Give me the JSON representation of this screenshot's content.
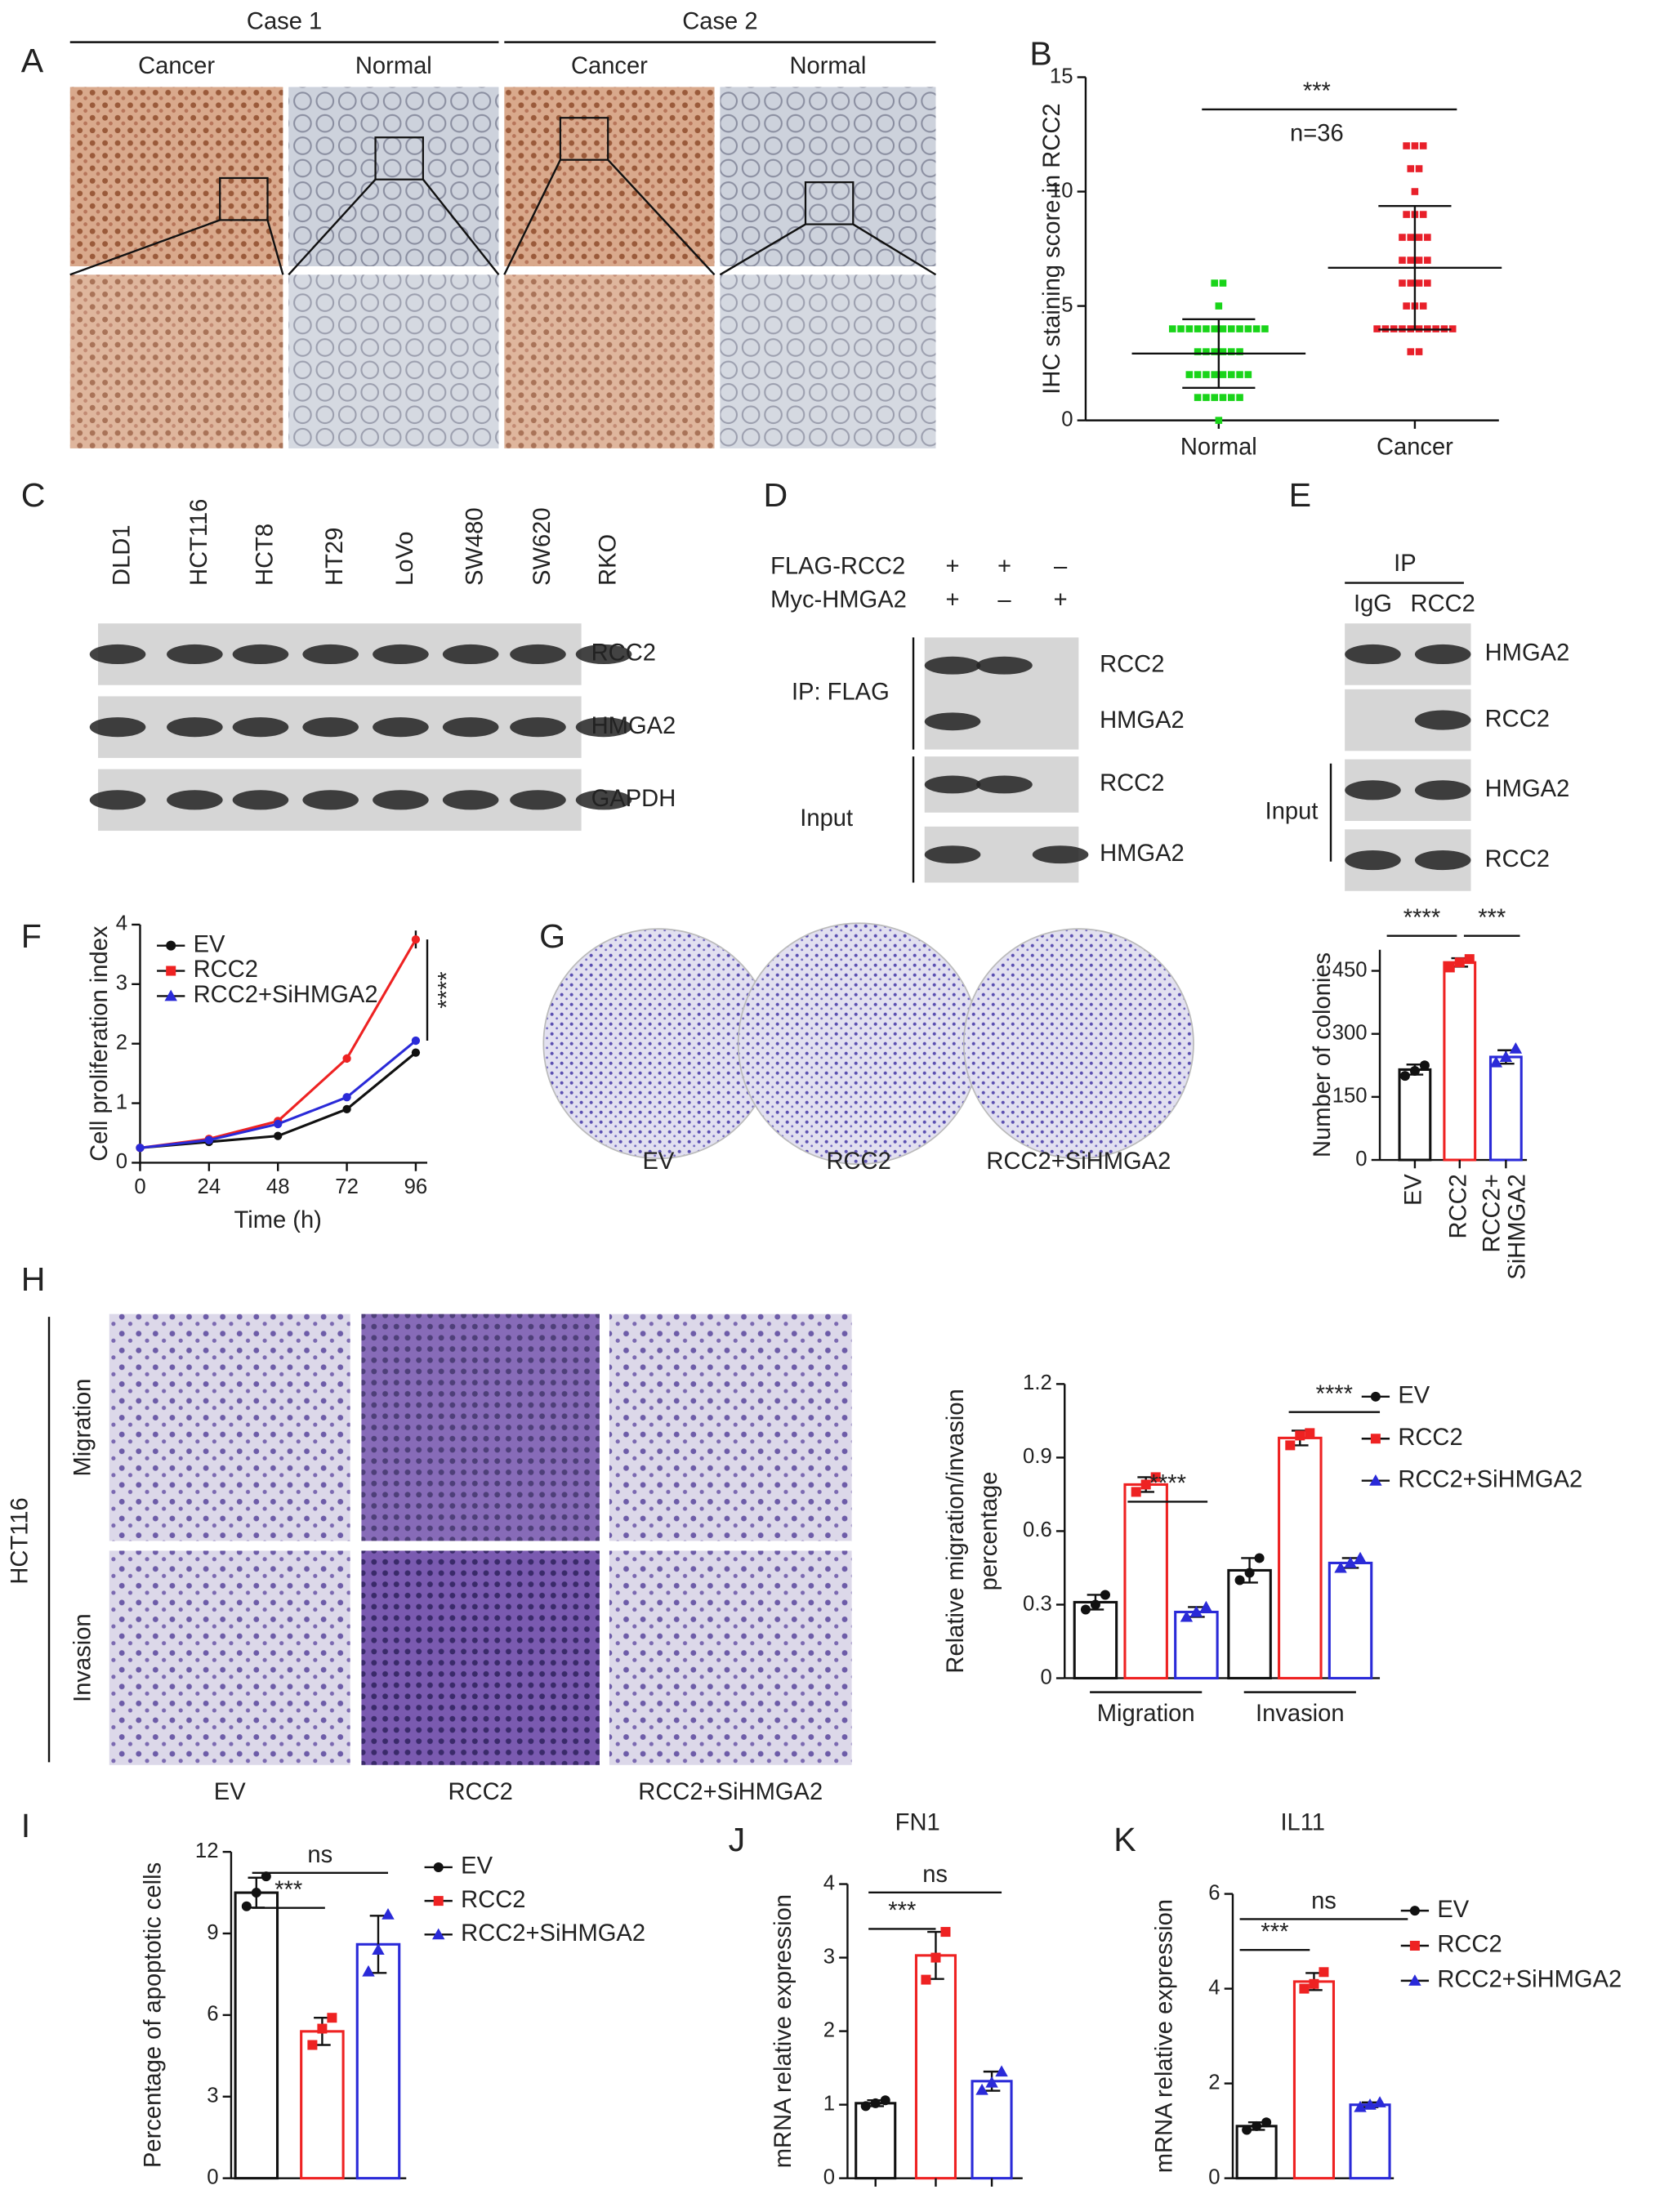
{
  "panel_labels": [
    "A",
    "B",
    "C",
    "D",
    "E",
    "F",
    "G",
    "H",
    "I",
    "J",
    "K"
  ],
  "panel_a": {
    "groups": [
      {
        "title": "Case 1",
        "columns": [
          "Cancer",
          "Normal"
        ]
      },
      {
        "title": "Case 2",
        "columns": [
          "Cancer",
          "Normal"
        ]
      }
    ]
  },
  "panel_c": {
    "lanes": [
      "DLD1",
      "HCT116",
      "HCT8",
      "HT29",
      "LoVo",
      "SW480",
      "SW620",
      "RKO"
    ],
    "bands": [
      "RCC2",
      "HMGA2",
      "GAPDH"
    ]
  },
  "panel_d": {
    "rows": [
      {
        "label": "FLAG-RCC2",
        "signs": [
          "+",
          "+",
          "–"
        ]
      },
      {
        "label": "Myc-HMGA2",
        "signs": [
          "+",
          "–",
          "+"
        ]
      }
    ],
    "sections": [
      {
        "label": "IP: FLAG",
        "bands": [
          "RCC2",
          "HMGA2"
        ]
      },
      {
        "label": "Input",
        "bands": [
          "RCC2",
          "HMGA2"
        ]
      }
    ]
  },
  "panel_e": {
    "header": "IP",
    "lanes": [
      "IgG",
      "RCC2"
    ],
    "bands": [
      "HMGA2",
      "RCC2",
      "HMGA2",
      "RCC2"
    ],
    "input_label": "Input"
  },
  "panel_g": {
    "dishes": [
      "EV",
      "RCC2",
      "RCC2+SiHMGA2"
    ]
  },
  "panel_h": {
    "side_label": "HCT116",
    "rows": [
      "Migration",
      "Invasion"
    ],
    "columns": [
      "EV",
      "RCC2",
      "RCC2+SiHMGA2"
    ]
  },
  "chart_data": [
    {
      "type": "dotplot",
      "ylabel": "IHC staining score in RCC2",
      "categories": [
        "Normal",
        "Cancer"
      ],
      "groups": [
        {
          "color": "#19d419",
          "values": [
            6,
            6,
            5,
            4,
            4,
            4,
            4,
            4,
            4,
            4,
            4,
            4,
            4,
            4,
            4,
            3,
            3,
            3,
            3,
            3,
            3,
            2,
            2,
            2,
            2,
            2,
            2,
            2,
            2,
            1,
            1,
            1,
            1,
            1,
            1,
            0
          ],
          "mean": 2.92,
          "sd": 1.5
        },
        {
          "color": "#e8202a",
          "values": [
            12,
            12,
            12,
            11,
            11,
            10,
            9,
            9,
            9,
            8,
            8,
            8,
            8,
            7,
            7,
            7,
            7,
            6,
            6,
            6,
            6,
            5,
            5,
            5,
            4,
            4,
            4,
            4,
            4,
            4,
            4,
            4,
            4,
            4,
            3,
            3
          ],
          "mean": 6.67,
          "sd": 2.7
        }
      ],
      "ylim": [
        0,
        15
      ],
      "yticks": [
        0,
        5,
        10,
        15
      ],
      "annotations": [
        "***",
        "n=36"
      ]
    },
    {
      "type": "line",
      "xlabel": "Time (h)",
      "ylabel": "Cell proliferation index",
      "x": [
        0,
        24,
        48,
        72,
        96
      ],
      "xlim": [
        0,
        100
      ],
      "xticks": [
        0,
        24,
        48,
        72,
        96
      ],
      "ylim": [
        0,
        4
      ],
      "yticks": [
        0,
        1,
        2,
        3,
        4
      ],
      "series": [
        {
          "name": "EV",
          "color": "#111111",
          "values": [
            0.25,
            0.35,
            0.45,
            0.9,
            1.85
          ],
          "errors": [
            0.02,
            0.02,
            0.03,
            0.04,
            0.06
          ]
        },
        {
          "name": "RCC2",
          "color": "#ee2222",
          "values": [
            0.25,
            0.4,
            0.7,
            1.75,
            3.75
          ],
          "errors": [
            0.02,
            0.03,
            0.04,
            0.07,
            0.15
          ]
        },
        {
          "name": "RCC2+SiHMGA2",
          "color": "#2a2ad8",
          "values": [
            0.25,
            0.38,
            0.65,
            1.1,
            2.05
          ],
          "errors": [
            0.02,
            0.02,
            0.03,
            0.04,
            0.06
          ]
        }
      ],
      "annotations": [
        "****"
      ]
    },
    {
      "type": "bar",
      "ylabel": "Number of colonies",
      "categories": [
        "EV",
        "RCC2",
        [
          "RCC2+",
          "SiHMGA2"
        ]
      ],
      "values": [
        215,
        470,
        245
      ],
      "colors": [
        "#111111",
        "#ee2222",
        "#2a2ad8"
      ],
      "points": [
        [
          200,
          212,
          225
        ],
        [
          458,
          470,
          478
        ],
        [
          232,
          245,
          265
        ]
      ],
      "errors": [
        12,
        10,
        16
      ],
      "ylim": [
        0,
        500
      ],
      "yticks": [
        0,
        150,
        300,
        450
      ],
      "annotations": [
        "****",
        "***"
      ]
    },
    {
      "type": "bar",
      "ylabel": [
        "Relative migration/invasion",
        "percentage"
      ],
      "categories": [
        "Migration",
        "Invasion"
      ],
      "series": [
        {
          "name": "EV",
          "color": "#111111",
          "values": [
            0.31,
            0.44
          ],
          "errors": [
            0.03,
            0.05
          ],
          "points": [
            [
              0.28,
              0.3,
              0.34
            ],
            [
              0.4,
              0.43,
              0.49
            ]
          ]
        },
        {
          "name": "RCC2",
          "color": "#ee2222",
          "values": [
            0.79,
            0.98
          ],
          "errors": [
            0.03,
            0.03
          ],
          "points": [
            [
              0.76,
              0.79,
              0.82
            ],
            [
              0.95,
              0.99,
              1.0
            ]
          ]
        },
        {
          "name": "RCC2+SiHMGA2",
          "color": "#2a2ad8",
          "values": [
            0.27,
            0.47
          ],
          "errors": [
            0.02,
            0.02
          ],
          "points": [
            [
              0.25,
              0.27,
              0.29
            ],
            [
              0.45,
              0.47,
              0.49
            ]
          ]
        }
      ],
      "ylim": [
        0,
        1.2
      ],
      "yticks": [
        0,
        0.3,
        0.6,
        0.9,
        1.2
      ],
      "annotations": [
        "****",
        "****"
      ]
    },
    {
      "type": "bar",
      "ylabel": "Percentage of apoptotic cells",
      "categories": [
        null
      ],
      "series": [
        {
          "name": "EV",
          "color": "#111111",
          "values": [
            10.5
          ],
          "errors": [
            0.55
          ],
          "points": [
            [
              10.0,
              10.5,
              11.1
            ]
          ]
        },
        {
          "name": "RCC2",
          "color": "#ee2222",
          "values": [
            5.4
          ],
          "errors": [
            0.5
          ],
          "points": [
            [
              4.9,
              5.5,
              5.9
            ]
          ]
        },
        {
          "name": "RCC2+SiHMGA2",
          "color": "#2a2ad8",
          "values": [
            8.6
          ],
          "errors": [
            1.05
          ],
          "points": [
            [
              7.6,
              8.4,
              9.7
            ]
          ]
        }
      ],
      "ylim": [
        0,
        12
      ],
      "yticks": [
        0,
        3,
        6,
        9,
        12
      ],
      "annotations": [
        "***",
        "ns"
      ]
    },
    {
      "type": "bar",
      "title": "FN1",
      "ylabel": "mRNA relative expression",
      "categories": [
        null,
        null,
        null
      ],
      "values": [
        1.02,
        3.03,
        1.32
      ],
      "colors": [
        "#111111",
        "#ee2222",
        "#2a2ad8"
      ],
      "points": [
        [
          0.98,
          1.02,
          1.06
        ],
        [
          2.7,
          3.0,
          3.35
        ],
        [
          1.2,
          1.3,
          1.45
        ]
      ],
      "errors": [
        0.04,
        0.32,
        0.13
      ],
      "ylim": [
        0,
        4
      ],
      "yticks": [
        0,
        1,
        2,
        3,
        4
      ],
      "annotations": [
        "***",
        "ns"
      ]
    },
    {
      "type": "bar",
      "title": "IL11",
      "ylabel": "mRNA relative expression",
      "categories": [
        null
      ],
      "series": [
        {
          "name": "EV",
          "color": "#111111",
          "values": [
            1.1
          ],
          "errors": [
            0.08
          ],
          "points": [
            [
              1.02,
              1.1,
              1.18
            ]
          ]
        },
        {
          "name": "RCC2",
          "color": "#ee2222",
          "values": [
            4.15
          ],
          "errors": [
            0.18
          ],
          "points": [
            [
              4.0,
              4.1,
              4.35
            ]
          ]
        },
        {
          "name": "RCC2+SiHMGA2",
          "color": "#2a2ad8",
          "values": [
            1.55
          ],
          "errors": [
            0.05
          ],
          "points": [
            [
              1.5,
              1.55,
              1.6
            ]
          ]
        }
      ],
      "ylim": [
        0,
        6
      ],
      "yticks": [
        0,
        2,
        4,
        6
      ],
      "annotations": [
        "***",
        "ns"
      ]
    }
  ]
}
